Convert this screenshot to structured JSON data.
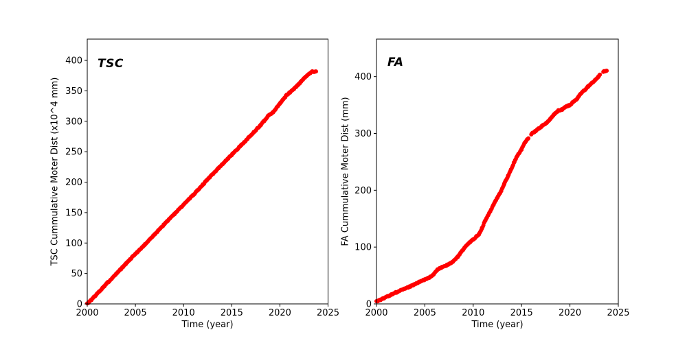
{
  "figure": {
    "background": "#ffffff",
    "text_color": "#000000"
  },
  "chart_data": [
    {
      "type": "scatter",
      "annotation": "TSC",
      "xlabel": "Time (year)",
      "ylabel": "TSC Cummulative Moter Dist (x10^4 mm)",
      "x_ticks": [
        2000,
        2005,
        2010,
        2015,
        2020,
        2025
      ],
      "y_ticks": [
        0,
        50,
        100,
        150,
        200,
        250,
        300,
        350,
        400
      ],
      "xlim": [
        2000,
        2025
      ],
      "ylim": [
        0,
        435
      ],
      "grid": false,
      "legend": "none",
      "marker_color": "#ff0000",
      "marker_radius": 3,
      "series": [
        {
          "segments": [
            [
              [
                2000.0,
                0
              ],
              [
                2001,
                16
              ],
              [
                2002,
                33
              ],
              [
                2003,
                49
              ],
              [
                2004,
                66
              ],
              [
                2005,
                82
              ],
              [
                2006,
                98
              ],
              [
                2007,
                114
              ],
              [
                2008,
                131
              ],
              [
                2009,
                147
              ],
              [
                2010,
                163
              ],
              [
                2011,
                179
              ],
              [
                2012,
                196
              ],
              [
                2013,
                213
              ],
              [
                2014,
                229
              ],
              [
                2015,
                245
              ],
              [
                2016,
                261
              ],
              [
                2017,
                277
              ],
              [
                2018,
                294
              ],
              [
                2018.8,
                309
              ],
              [
                2019.3,
                315
              ],
              [
                2020.0,
                329
              ],
              [
                2020.7,
                343
              ],
              [
                2021.4,
                352
              ],
              [
                2022.0,
                362
              ],
              [
                2022.6,
                372
              ],
              [
                2023.1,
                379
              ],
              [
                2023.35,
                381.5
              ],
              [
                2023.75,
                382
              ]
            ]
          ]
        }
      ]
    },
    {
      "type": "scatter",
      "annotation": "FA",
      "xlabel": "Time (year)",
      "ylabel": "FA Cummulative Moter Dist (mm)",
      "x_ticks": [
        2000,
        2005,
        2010,
        2015,
        2020,
        2025
      ],
      "y_ticks": [
        0,
        100,
        200,
        300,
        400
      ],
      "xlim": [
        2000,
        2025
      ],
      "ylim": [
        0,
        466
      ],
      "grid": false,
      "legend": "none",
      "marker_color": "#ff0000",
      "marker_radius": 3,
      "series": [
        {
          "segments": [
            [
              [
                2000,
                4
              ],
              [
                2000.5,
                8
              ],
              [
                2001,
                12
              ],
              [
                2001.5,
                16
              ],
              [
                2002,
                20
              ],
              [
                2002.5,
                24
              ],
              [
                2003,
                27
              ],
              [
                2003.5,
                31
              ],
              [
                2004,
                35
              ],
              [
                2004.5,
                39
              ],
              [
                2005,
                43
              ],
              [
                2005.5,
                47
              ],
              [
                2005.9,
                52
              ],
              [
                2006.3,
                60
              ],
              [
                2006.7,
                64
              ],
              [
                2007,
                66
              ],
              [
                2007.5,
                70
              ],
              [
                2007.9,
                74
              ],
              [
                2008.4,
                83
              ],
              [
                2008.8,
                92
              ],
              [
                2009.1,
                99
              ],
              [
                2009.5,
                106
              ],
              [
                2009.9,
                112
              ],
              [
                2010.3,
                118
              ],
              [
                2010.6,
                123
              ],
              [
                2010.9,
                133
              ],
              [
                2011.2,
                145
              ],
              [
                2011.7,
                161
              ],
              [
                2012.1,
                175
              ],
              [
                2012.5,
                187
              ],
              [
                2012.9,
                199
              ],
              [
                2013.2,
                211
              ],
              [
                2013.6,
                225
              ],
              [
                2013.9,
                236
              ],
              [
                2014.2,
                248
              ],
              [
                2014.6,
                262
              ],
              [
                2015.0,
                272
              ],
              [
                2015.3,
                283
              ],
              [
                2015.7,
                292
              ]
            ],
            [
              [
                2016.0,
                299
              ],
              [
                2016.4,
                304
              ],
              [
                2016.8,
                309
              ],
              [
                2017.2,
                314
              ],
              [
                2017.6,
                319
              ],
              [
                2018.0,
                326
              ],
              [
                2018.4,
                334
              ],
              [
                2018.8,
                340
              ],
              [
                2019.2,
                342
              ],
              [
                2019.6,
                347
              ],
              [
                2020.0,
                350
              ],
              [
                2020.3,
                355
              ],
              [
                2020.7,
                360
              ],
              [
                2021.1,
                370
              ],
              [
                2021.5,
                376
              ],
              [
                2021.9,
                383
              ],
              [
                2022.3,
                389
              ],
              [
                2022.6,
                394
              ],
              [
                2022.9,
                399
              ],
              [
                2023.1,
                403
              ]
            ],
            [
              [
                2023.45,
                409
              ],
              [
                2023.6,
                410
              ],
              [
                2023.8,
                410
              ]
            ]
          ]
        }
      ]
    }
  ]
}
